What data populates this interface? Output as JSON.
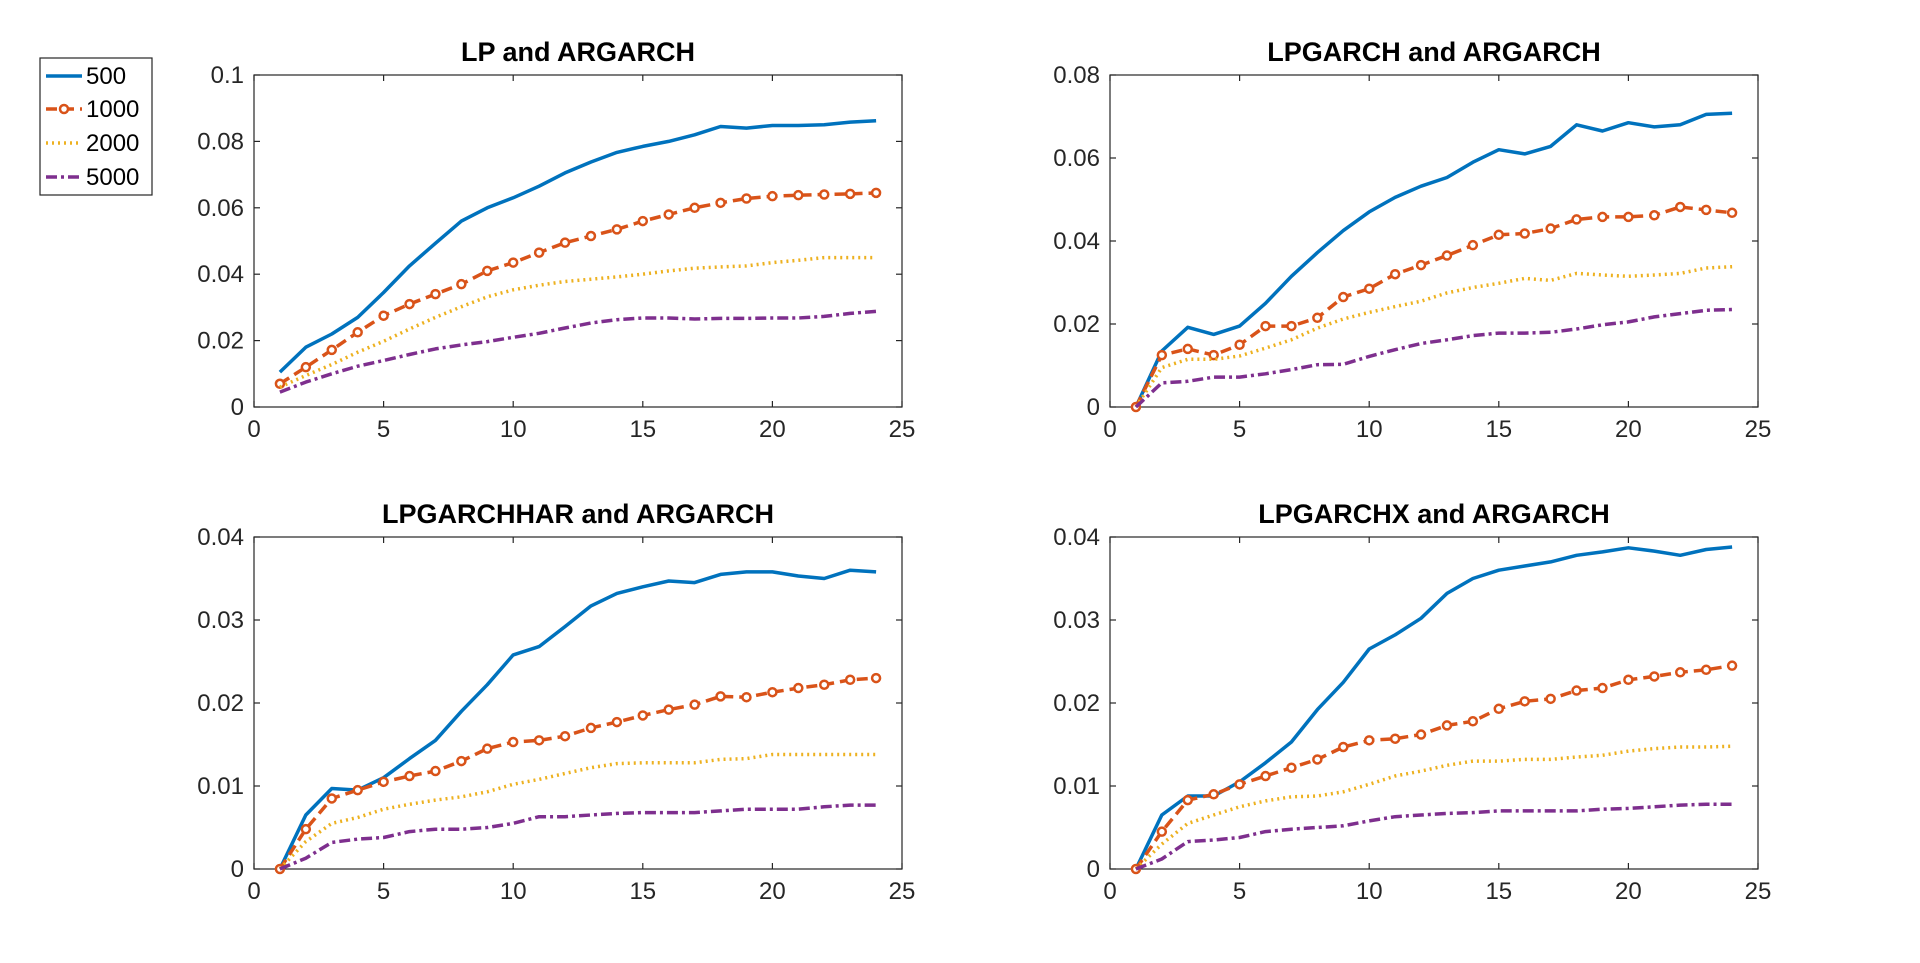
{
  "figure": {
    "legend": {
      "location": "upper-left-outside",
      "entries": [
        {
          "label": "500",
          "series": "s500"
        },
        {
          "label": "1000",
          "series": "s1000"
        },
        {
          "label": "2000",
          "series": "s2000"
        },
        {
          "label": "5000",
          "series": "s5000"
        }
      ]
    }
  },
  "series_styles": {
    "s500": {
      "color": "#0072BD",
      "line": "solid",
      "marker": "none"
    },
    "s1000": {
      "color": "#D95319",
      "line": "dashed",
      "marker": "circle"
    },
    "s2000": {
      "color": "#EDB120",
      "line": "dotted",
      "marker": "none"
    },
    "s5000": {
      "color": "#7E2F8E",
      "line": "dashdot",
      "marker": "none"
    }
  },
  "chart_data": [
    {
      "type": "line",
      "title": "LP and ARGARCH",
      "xlabel": "",
      "ylabel": "",
      "xlim": [
        0,
        25
      ],
      "ylim": [
        0,
        0.1
      ],
      "xticks": [
        0,
        5,
        10,
        15,
        20,
        25
      ],
      "xtick_labels": [
        "0",
        "5",
        "10",
        "15",
        "20",
        "25"
      ],
      "yticks": [
        0,
        0.02,
        0.04,
        0.06,
        0.08,
        0.1
      ],
      "ytick_labels": [
        "0",
        "0.02",
        "0.04",
        "0.06",
        "0.08",
        "0.1"
      ],
      "grid": false,
      "x": [
        1,
        2,
        3,
        4,
        5,
        6,
        7,
        8,
        9,
        10,
        11,
        12,
        13,
        14,
        15,
        16,
        17,
        18,
        19,
        20,
        21,
        22,
        23,
        24
      ],
      "series": [
        {
          "name": "500",
          "key": "s500",
          "values": [
            0.0105,
            0.018,
            0.022,
            0.027,
            0.0345,
            0.0425,
            0.0493,
            0.056,
            0.06,
            0.063,
            0.0665,
            0.0705,
            0.0738,
            0.0767,
            0.0785,
            0.08,
            0.082,
            0.0845,
            0.084,
            0.0848,
            0.0848,
            0.085,
            0.0858,
            0.0862
          ]
        },
        {
          "name": "1000",
          "key": "s1000",
          "values": [
            0.007,
            0.012,
            0.0172,
            0.0225,
            0.0275,
            0.031,
            0.034,
            0.037,
            0.041,
            0.0435,
            0.0465,
            0.0495,
            0.0515,
            0.0535,
            0.056,
            0.058,
            0.06,
            0.0615,
            0.0628,
            0.0635,
            0.0638,
            0.064,
            0.0642,
            0.0645
          ]
        },
        {
          "name": "2000",
          "key": "s2000",
          "values": [
            0.006,
            0.0095,
            0.0128,
            0.0165,
            0.0198,
            0.0235,
            0.027,
            0.0302,
            0.0332,
            0.0353,
            0.0367,
            0.0378,
            0.0385,
            0.0392,
            0.04,
            0.041,
            0.0418,
            0.0422,
            0.0425,
            0.0435,
            0.0442,
            0.045,
            0.045,
            0.045
          ]
        },
        {
          "name": "5000",
          "key": "s5000",
          "values": [
            0.0045,
            0.0075,
            0.01,
            0.0123,
            0.014,
            0.0158,
            0.0175,
            0.0187,
            0.0197,
            0.021,
            0.0222,
            0.0238,
            0.0253,
            0.0263,
            0.0268,
            0.0268,
            0.0265,
            0.0267,
            0.0267,
            0.0268,
            0.0268,
            0.0273,
            0.0282,
            0.0288
          ]
        }
      ]
    },
    {
      "type": "line",
      "title": "LPGARCH and ARGARCH",
      "xlabel": "",
      "ylabel": "",
      "xlim": [
        0,
        25
      ],
      "ylim": [
        0,
        0.08
      ],
      "xticks": [
        0,
        5,
        10,
        15,
        20,
        25
      ],
      "xtick_labels": [
        "0",
        "5",
        "10",
        "15",
        "20",
        "25"
      ],
      "yticks": [
        0,
        0.02,
        0.04,
        0.06,
        0.08
      ],
      "ytick_labels": [
        "0",
        "0.02",
        "0.04",
        "0.06",
        "0.08"
      ],
      "grid": false,
      "x": [
        1,
        2,
        3,
        4,
        5,
        6,
        7,
        8,
        9,
        10,
        11,
        12,
        13,
        14,
        15,
        16,
        17,
        18,
        19,
        20,
        21,
        22,
        23,
        24
      ],
      "series": [
        {
          "name": "500",
          "key": "s500",
          "values": [
            0,
            0.0135,
            0.0192,
            0.0175,
            0.0195,
            0.025,
            0.0315,
            0.0372,
            0.0425,
            0.047,
            0.0505,
            0.0532,
            0.0553,
            0.059,
            0.062,
            0.061,
            0.0628,
            0.068,
            0.0665,
            0.0685,
            0.0675,
            0.068,
            0.0705,
            0.0708
          ]
        },
        {
          "name": "1000",
          "key": "s1000",
          "values": [
            0,
            0.0125,
            0.014,
            0.0125,
            0.015,
            0.0195,
            0.0195,
            0.0215,
            0.0265,
            0.0285,
            0.032,
            0.0342,
            0.0365,
            0.039,
            0.0415,
            0.0418,
            0.043,
            0.0452,
            0.0458,
            0.0458,
            0.0462,
            0.0482,
            0.0475,
            0.0468
          ]
        },
        {
          "name": "2000",
          "key": "s2000",
          "values": [
            0,
            0.0095,
            0.0115,
            0.0115,
            0.0123,
            0.0142,
            0.0162,
            0.019,
            0.0212,
            0.0228,
            0.0242,
            0.0255,
            0.0275,
            0.0288,
            0.0298,
            0.031,
            0.0305,
            0.0322,
            0.0318,
            0.0315,
            0.0318,
            0.0322,
            0.0335,
            0.0338
          ]
        },
        {
          "name": "5000",
          "key": "s5000",
          "values": [
            0,
            0.0058,
            0.0062,
            0.0072,
            0.0072,
            0.008,
            0.009,
            0.0102,
            0.0103,
            0.0122,
            0.0138,
            0.0153,
            0.0162,
            0.0172,
            0.0178,
            0.0178,
            0.018,
            0.0188,
            0.0198,
            0.0205,
            0.0217,
            0.0225,
            0.0233,
            0.0235
          ]
        }
      ]
    },
    {
      "type": "line",
      "title": "LPGARCHHAR and ARGARCH",
      "xlabel": "",
      "ylabel": "",
      "xlim": [
        0,
        25
      ],
      "ylim": [
        0,
        0.04
      ],
      "xticks": [
        0,
        5,
        10,
        15,
        20,
        25
      ],
      "xtick_labels": [
        "0",
        "5",
        "10",
        "15",
        "20",
        "25"
      ],
      "yticks": [
        0,
        0.01,
        0.02,
        0.03,
        0.04
      ],
      "ytick_labels": [
        "0",
        "0.01",
        "0.02",
        "0.03",
        "0.04"
      ],
      "grid": false,
      "x": [
        1,
        2,
        3,
        4,
        5,
        6,
        7,
        8,
        9,
        10,
        11,
        12,
        13,
        14,
        15,
        16,
        17,
        18,
        19,
        20,
        21,
        22,
        23,
        24
      ],
      "series": [
        {
          "name": "500",
          "key": "s500",
          "values": [
            0,
            0.0065,
            0.0097,
            0.0095,
            0.011,
            0.0133,
            0.0155,
            0.019,
            0.0222,
            0.0258,
            0.0268,
            0.0292,
            0.0317,
            0.0332,
            0.034,
            0.0347,
            0.0345,
            0.0355,
            0.0358,
            0.0358,
            0.0353,
            0.035,
            0.036,
            0.0358
          ]
        },
        {
          "name": "1000",
          "key": "s1000",
          "values": [
            0,
            0.0048,
            0.0085,
            0.0095,
            0.0105,
            0.0112,
            0.0118,
            0.013,
            0.0145,
            0.0153,
            0.0155,
            0.016,
            0.017,
            0.0177,
            0.0185,
            0.0192,
            0.0198,
            0.0208,
            0.0207,
            0.0213,
            0.0218,
            0.0222,
            0.0228,
            0.023
          ]
        },
        {
          "name": "2000",
          "key": "s2000",
          "values": [
            0,
            0.0033,
            0.0055,
            0.0062,
            0.0072,
            0.0078,
            0.0083,
            0.0087,
            0.0093,
            0.0102,
            0.0108,
            0.0115,
            0.0122,
            0.0127,
            0.0128,
            0.0128,
            0.0128,
            0.0132,
            0.0133,
            0.0138,
            0.0138,
            0.0138,
            0.0138,
            0.0138
          ]
        },
        {
          "name": "5000",
          "key": "s5000",
          "values": [
            0,
            0.0013,
            0.0032,
            0.0036,
            0.0038,
            0.0045,
            0.0048,
            0.0048,
            0.005,
            0.0055,
            0.0063,
            0.0063,
            0.0065,
            0.0067,
            0.0068,
            0.0068,
            0.0068,
            0.007,
            0.0072,
            0.0072,
            0.0072,
            0.0075,
            0.0077,
            0.0077
          ]
        }
      ]
    },
    {
      "type": "line",
      "title": "LPGARCHX and ARGARCH",
      "xlabel": "",
      "ylabel": "",
      "xlim": [
        0,
        25
      ],
      "ylim": [
        0,
        0.04
      ],
      "xticks": [
        0,
        5,
        10,
        15,
        20,
        25
      ],
      "xtick_labels": [
        "0",
        "5",
        "10",
        "15",
        "20",
        "25"
      ],
      "yticks": [
        0,
        0.01,
        0.02,
        0.03,
        0.04
      ],
      "ytick_labels": [
        "0",
        "0.01",
        "0.02",
        "0.03",
        "0.04"
      ],
      "grid": false,
      "x": [
        1,
        2,
        3,
        4,
        5,
        6,
        7,
        8,
        9,
        10,
        11,
        12,
        13,
        14,
        15,
        16,
        17,
        18,
        19,
        20,
        21,
        22,
        23,
        24
      ],
      "series": [
        {
          "name": "500",
          "key": "s500",
          "values": [
            0,
            0.0065,
            0.0088,
            0.0088,
            0.0105,
            0.0128,
            0.0153,
            0.0192,
            0.0225,
            0.0265,
            0.0282,
            0.0302,
            0.0332,
            0.035,
            0.036,
            0.0365,
            0.037,
            0.0378,
            0.0382,
            0.0387,
            0.0383,
            0.0378,
            0.0385,
            0.0388
          ]
        },
        {
          "name": "1000",
          "key": "s1000",
          "values": [
            0,
            0.0045,
            0.0083,
            0.009,
            0.0102,
            0.0112,
            0.0122,
            0.0132,
            0.0147,
            0.0155,
            0.0157,
            0.0162,
            0.0173,
            0.0178,
            0.0193,
            0.0202,
            0.0205,
            0.0215,
            0.0218,
            0.0228,
            0.0232,
            0.0237,
            0.024,
            0.0245
          ]
        },
        {
          "name": "2000",
          "key": "s2000",
          "values": [
            0,
            0.003,
            0.0055,
            0.0065,
            0.0075,
            0.0082,
            0.0087,
            0.0088,
            0.0093,
            0.0102,
            0.0112,
            0.0118,
            0.0125,
            0.013,
            0.013,
            0.0132,
            0.0132,
            0.0135,
            0.0137,
            0.0142,
            0.0145,
            0.0147,
            0.0147,
            0.0148
          ]
        },
        {
          "name": "5000",
          "key": "s5000",
          "values": [
            0,
            0.0012,
            0.0033,
            0.0035,
            0.0038,
            0.0045,
            0.0048,
            0.005,
            0.0052,
            0.0058,
            0.0063,
            0.0065,
            0.0067,
            0.0068,
            0.007,
            0.007,
            0.007,
            0.007,
            0.0072,
            0.0073,
            0.0075,
            0.0077,
            0.0078,
            0.0078
          ]
        }
      ]
    }
  ]
}
